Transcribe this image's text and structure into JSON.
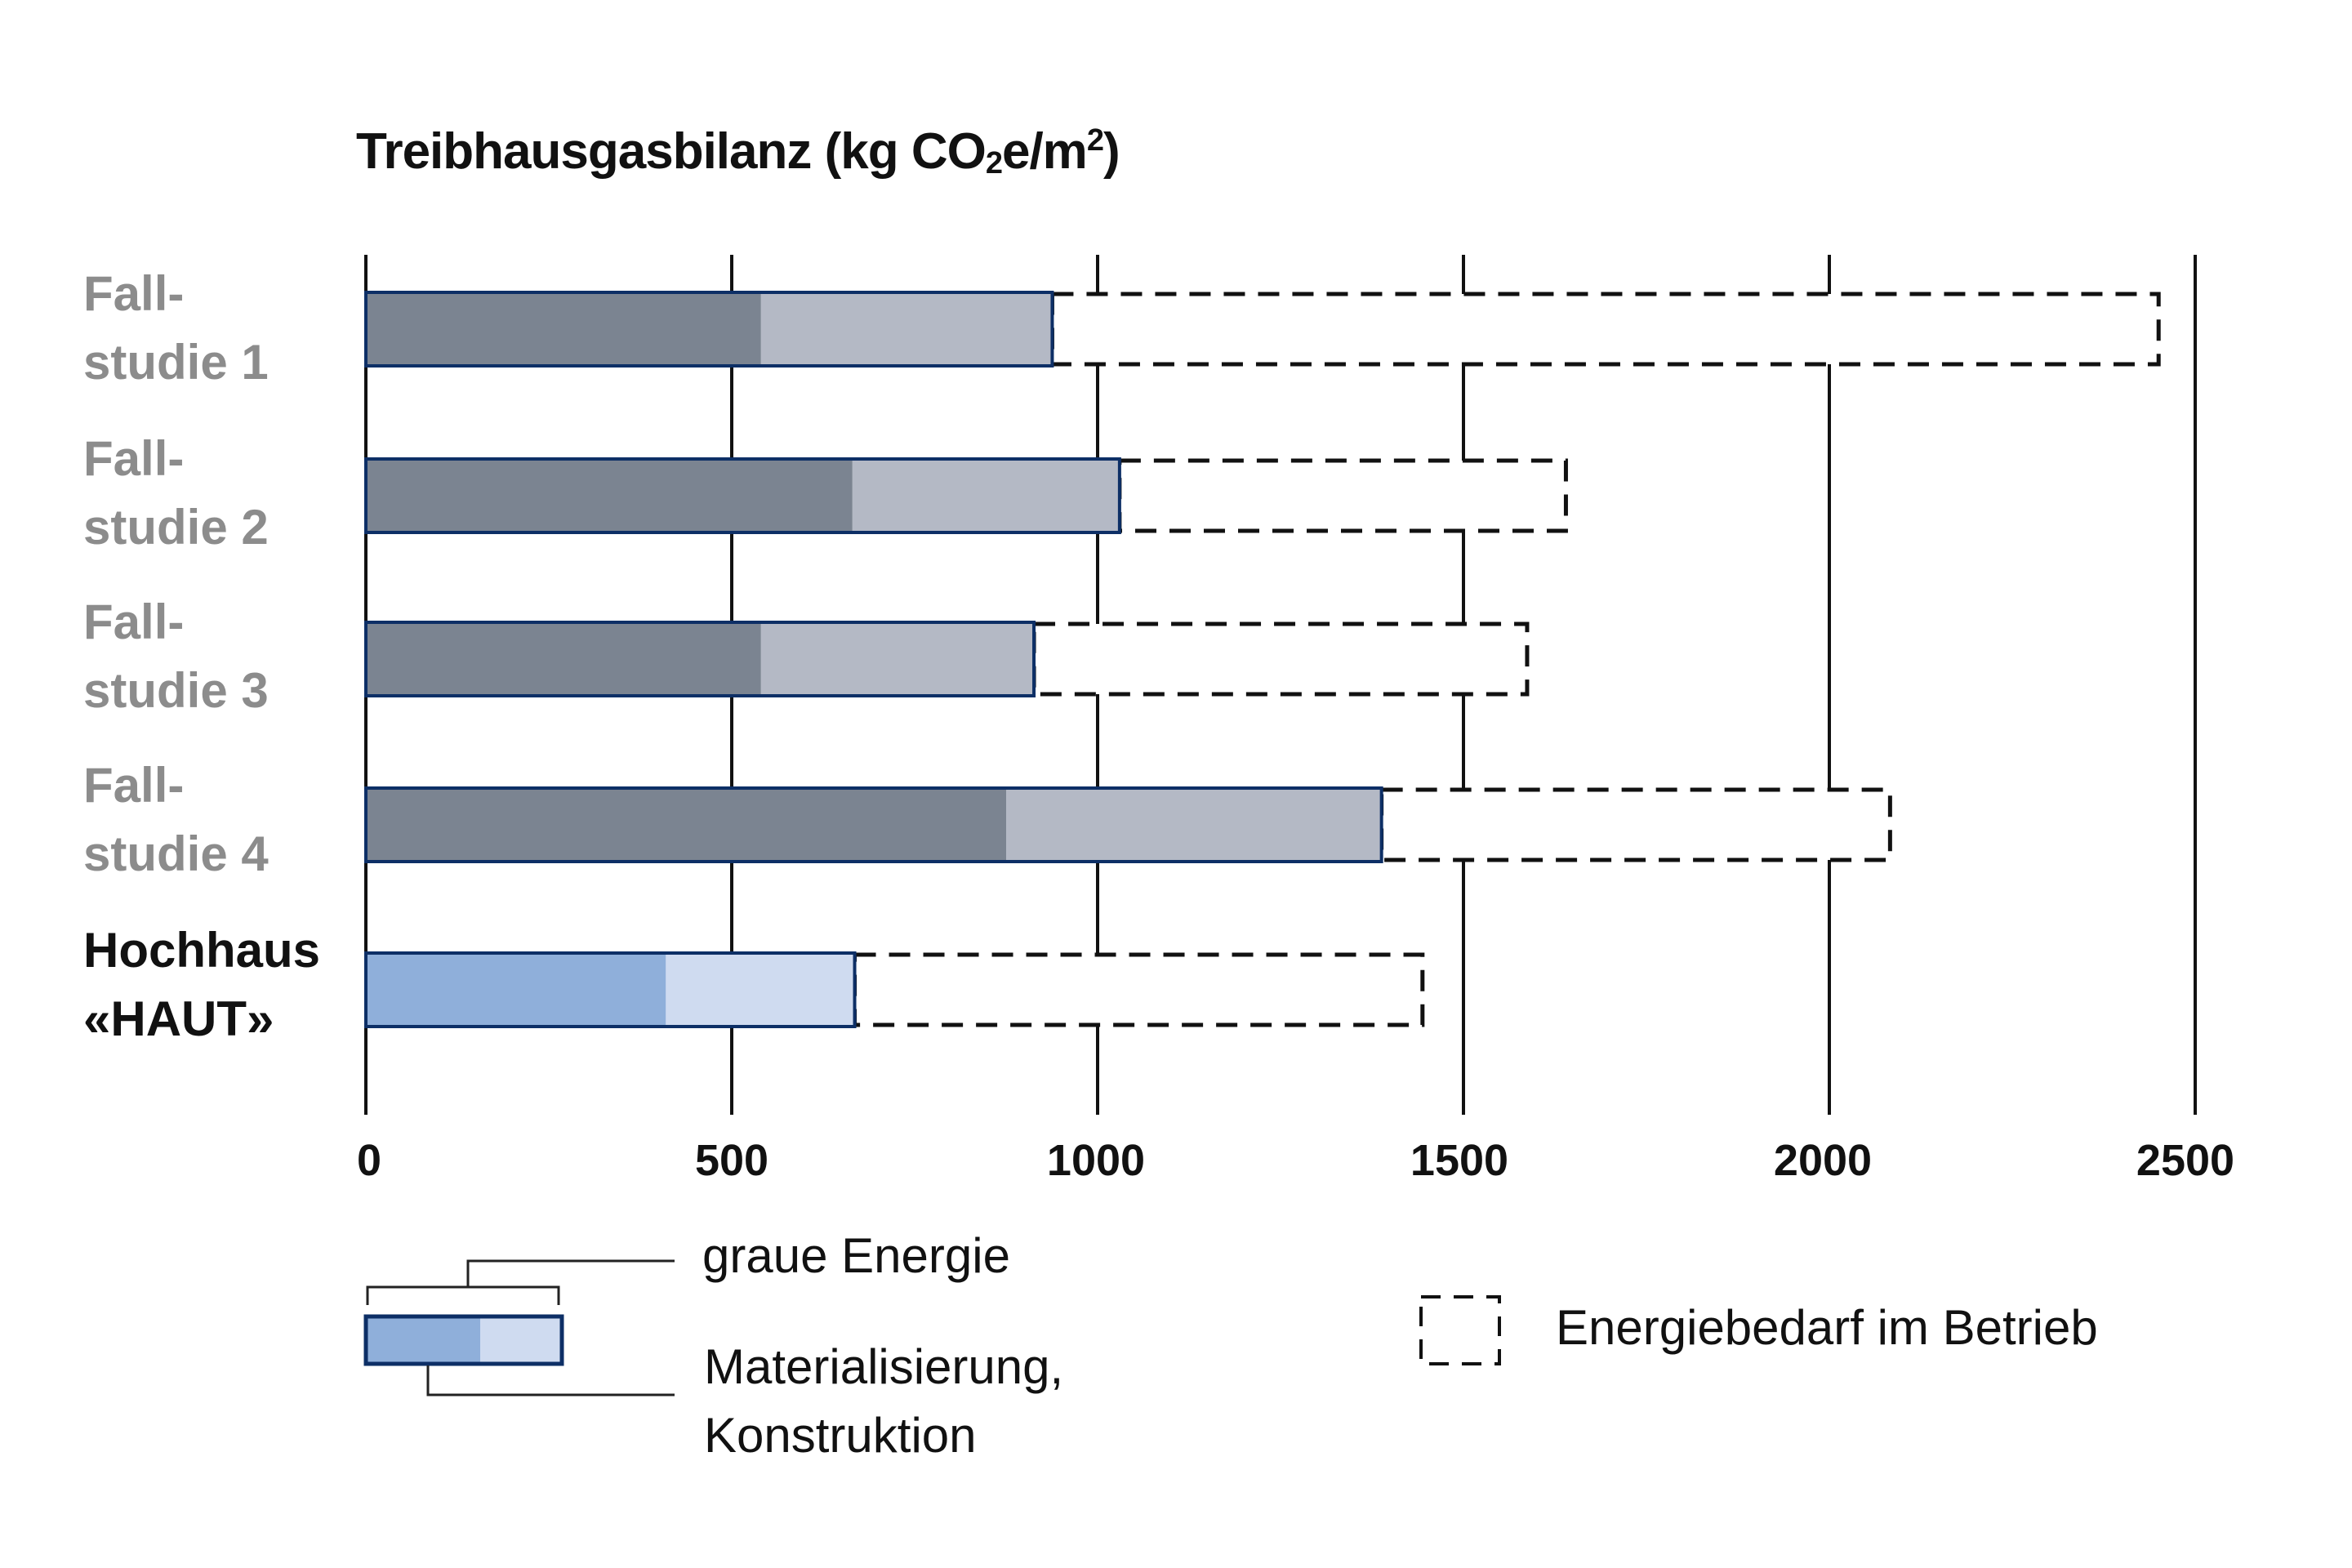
{
  "chart_data": {
    "type": "bar",
    "orientation": "horizontal",
    "stacked": true,
    "title": "Treibhausgasbilanz (kg CO₂e/m²)",
    "title_parts": {
      "main": "Treibhausgasbilanz (kg CO",
      "sub": "2",
      "mid": "e/m",
      "sup": "2",
      "end": ")"
    },
    "xlabel": "",
    "ylabel": "",
    "xlim": [
      0,
      2500
    ],
    "xticks": [
      "0",
      "500",
      "1000",
      "1500",
      "2000",
      "2500"
    ],
    "grid": true,
    "categories": [
      "Fallstudie 1",
      "Fallstudie 2",
      "Fallstudie 3",
      "Fallstudie 4",
      "Hochhaus «HAUT»"
    ],
    "category_labels": [
      {
        "line1": "Fall-",
        "line2": "studie 1"
      },
      {
        "line1": "Fall-",
        "line2": "studie 2"
      },
      {
        "line1": "Fall-",
        "line2": "studie 3"
      },
      {
        "line1": "Fall-",
        "line2": "studie 4"
      },
      {
        "line1": "Hochhaus",
        "line2": "«HAUT»"
      }
    ],
    "series": [
      {
        "name": "graue Energie – Materialisierung",
        "values": [
          540,
          665,
          540,
          875,
          410
        ]
      },
      {
        "name": "graue Energie – Konstruktion (cumulative end)",
        "values": [
          938,
          1030,
          913,
          1388,
          668
        ]
      },
      {
        "name": "Energiebedarf im Betrieb (cumulative end)",
        "values": [
          2450,
          1640,
          1587,
          2083,
          1444
        ]
      }
    ],
    "legend": {
      "grey_energy": "graue Energie",
      "materialisation": "Materialisierung,",
      "construction": "Konstruktion",
      "operation": "Energiebedarf im Betrieb"
    },
    "colors": {
      "case_dark": "#7b8491",
      "case_light": "#b4b9c5",
      "haut_dark": "#8fafda",
      "haut_light": "#cfdbf0",
      "outline": "#0d2f66"
    }
  }
}
